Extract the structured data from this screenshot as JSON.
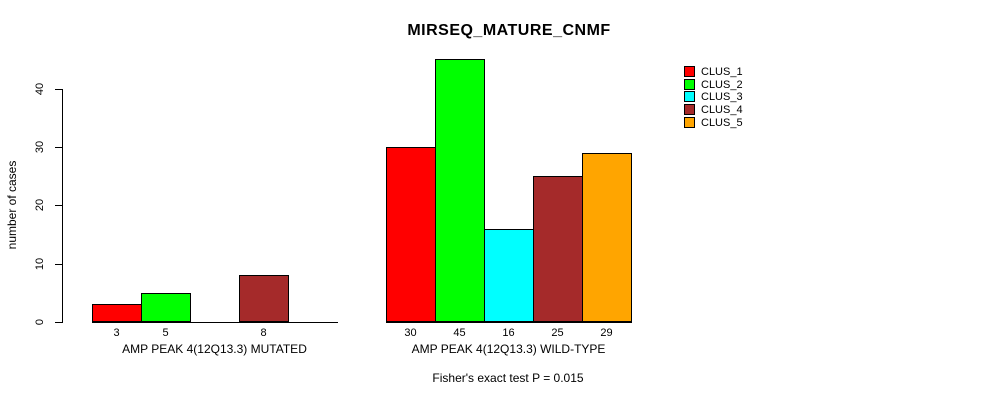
{
  "chart_data": {
    "type": "bar",
    "title": "MIRSEQ_MATURE_CNMF",
    "ylabel": "number of cases",
    "annotation": "Fisher's exact test P = 0.015",
    "yticks": [
      0,
      10,
      20,
      30,
      40
    ],
    "ylim": [
      0,
      45
    ],
    "grid": false,
    "legend_position": "top-right-outside",
    "series_names": [
      "CLUS_1",
      "CLUS_2",
      "CLUS_3",
      "CLUS_4",
      "CLUS_5"
    ],
    "colors": [
      "#ff0000",
      "#00ff00",
      "#00ffff",
      "#a52a2a",
      "#ffa500"
    ],
    "groups": [
      {
        "label": "AMP PEAK 4(12Q13.3) MUTATED",
        "values": [
          3,
          5,
          0,
          8,
          0
        ],
        "value_labels": [
          "3",
          "5",
          "",
          "8",
          ""
        ]
      },
      {
        "label": "AMP PEAK 4(12Q13.3) WILD-TYPE",
        "values": [
          30,
          45,
          16,
          25,
          29
        ],
        "value_labels": [
          "30",
          "45",
          "16",
          "25",
          "29"
        ]
      }
    ]
  }
}
